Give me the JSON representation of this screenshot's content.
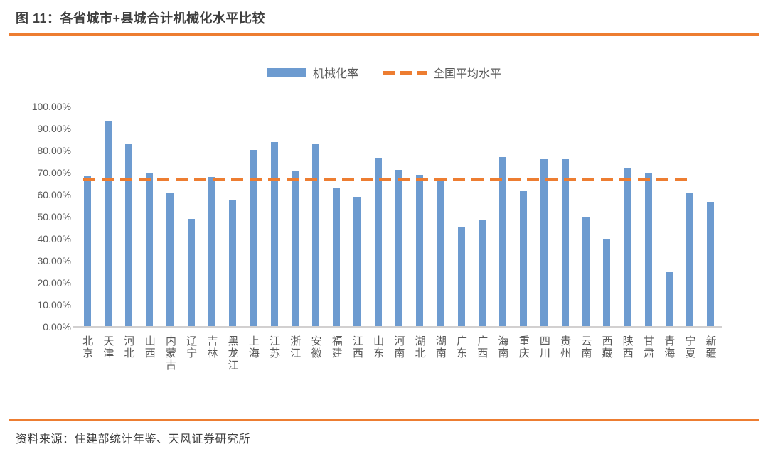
{
  "title": "图 11：各省城市+县城合计机械化水平比较",
  "legend": {
    "bar_label": "机械化率",
    "line_label": "全国平均水平"
  },
  "source": "资料来源：住建部统计年鉴、天风证券研究所",
  "colors": {
    "bar": "#6D9BD0",
    "line": "#ED7D31",
    "rule": "#ED7D31",
    "title_text": "#3F3F3F",
    "axis_text": "#595959"
  },
  "chart_data": {
    "type": "bar",
    "title": "图 11：各省城市+县城合计机械化水平比较",
    "categories": [
      "北京",
      "天津",
      "河北",
      "山西",
      "内蒙古",
      "辽宁",
      "吉林",
      "黑龙江",
      "上海",
      "江苏",
      "浙江",
      "安徽",
      "福建",
      "江西",
      "山东",
      "河南",
      "湖北",
      "湖南",
      "广东",
      "广西",
      "海南",
      "重庆",
      "四川",
      "贵州",
      "云南",
      "西藏",
      "陕西",
      "甘肃",
      "青海",
      "宁夏",
      "新疆"
    ],
    "series": [
      {
        "name": "机械化率",
        "type": "bar",
        "unit": "%",
        "values": [
          68.5,
          93.2,
          83.3,
          70.0,
          60.6,
          48.9,
          68.0,
          57.4,
          80.2,
          83.8,
          70.5,
          83.2,
          62.8,
          58.9,
          76.5,
          71.2,
          68.9,
          66.4,
          45.2,
          48.4,
          77.0,
          61.7,
          76.0,
          76.2,
          49.8,
          39.6,
          71.8,
          69.7,
          24.7,
          60.5,
          56.3
        ]
      },
      {
        "name": "全国平均水平",
        "type": "dashed-line",
        "unit": "%",
        "value": 67.0,
        "span_categories": [
          "北京",
          "宁夏"
        ]
      }
    ],
    "xlabel": "",
    "ylabel": "",
    "ylim": [
      0,
      100
    ],
    "ytick_interval": 10,
    "yticks": [
      "0.00%",
      "10.00%",
      "20.00%",
      "30.00%",
      "40.00%",
      "50.00%",
      "60.00%",
      "70.00%",
      "80.00%",
      "90.00%",
      "100.00%"
    ],
    "grid": false,
    "legend_position": "top-center",
    "x_label_orientation": "vertical"
  }
}
